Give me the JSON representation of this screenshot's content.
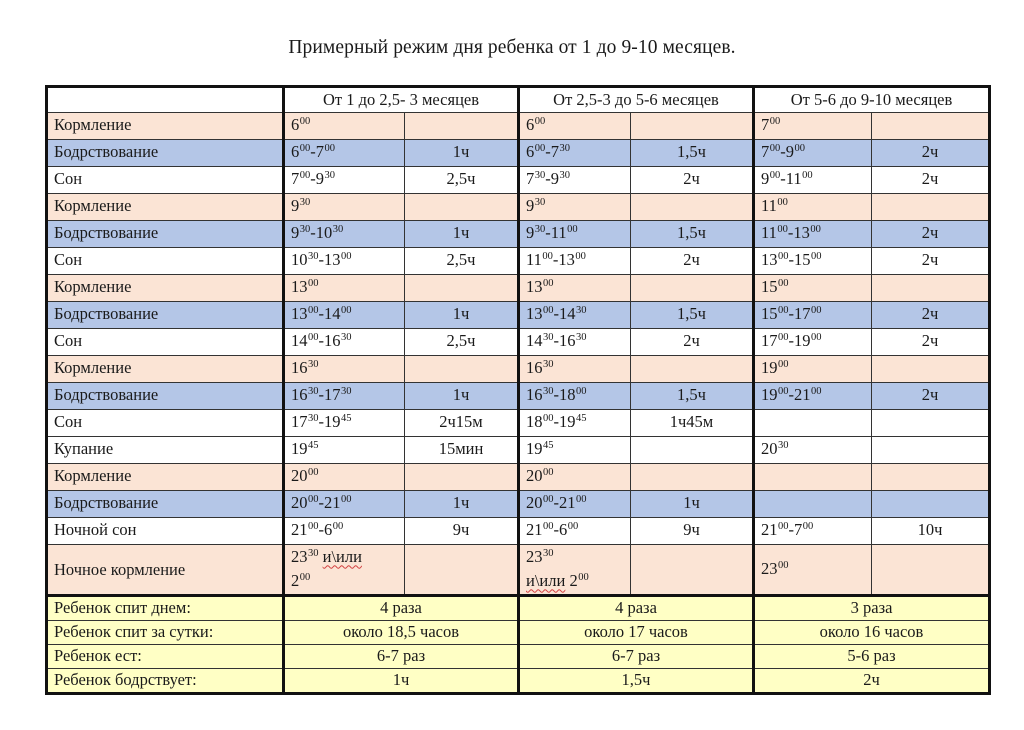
{
  "title": "Примерный режим дня ребенка от 1 до 9-10 месяцев.",
  "colors": {
    "feeding_row": "#FBE4D5",
    "wake_row": "#B4C6E7",
    "sleep_row": "#FFFFFF",
    "summary_row": "#FFFFC5",
    "border": "#111111",
    "spellcheck_underline": "#D24040"
  },
  "header": {
    "corner": "",
    "groups": [
      "От 1 до 2,5- 3 месяцев",
      "От 2,5-3 до 5-6 месяцев",
      "От 5-6 до 9-10 месяцев"
    ]
  },
  "rows": [
    {
      "type": "feed",
      "label": "Кормление",
      "cells": [
        {
          "t": [
            [
              "6",
              "00"
            ]
          ],
          "d": ""
        },
        {
          "t": [
            [
              "6",
              "00"
            ]
          ],
          "d": ""
        },
        {
          "t": [
            [
              "7",
              "00"
            ]
          ],
          "d": ""
        }
      ]
    },
    {
      "type": "wake",
      "label": "Бодрствование",
      "cells": [
        {
          "t": [
            [
              "6",
              "00"
            ],
            [
              "7",
              "00"
            ]
          ],
          "d": "1ч"
        },
        {
          "t": [
            [
              "6",
              "00"
            ],
            [
              "7",
              "30"
            ]
          ],
          "d": "1,5ч"
        },
        {
          "t": [
            [
              "7",
              "00"
            ],
            [
              "9",
              "00"
            ]
          ],
          "d": "2ч"
        }
      ]
    },
    {
      "type": "sleep",
      "label": "Сон",
      "cells": [
        {
          "t": [
            [
              "7",
              "00"
            ],
            [
              "9",
              "30"
            ]
          ],
          "d": "2,5ч"
        },
        {
          "t": [
            [
              "7",
              "30"
            ],
            [
              "9",
              "30"
            ]
          ],
          "d": "2ч"
        },
        {
          "t": [
            [
              "9",
              "00"
            ],
            [
              "11",
              "00"
            ]
          ],
          "d": "2ч"
        }
      ]
    },
    {
      "type": "feed",
      "label": "Кормление",
      "cells": [
        {
          "t": [
            [
              "9",
              "30"
            ]
          ],
          "d": ""
        },
        {
          "t": [
            [
              "9",
              "30"
            ]
          ],
          "d": ""
        },
        {
          "t": [
            [
              "11",
              "00"
            ]
          ],
          "d": ""
        }
      ]
    },
    {
      "type": "wake",
      "label": "Бодрствование",
      "cells": [
        {
          "t": [
            [
              "9",
              "30"
            ],
            [
              "10",
              "30"
            ]
          ],
          "d": "1ч"
        },
        {
          "t": [
            [
              "9",
              "30"
            ],
            [
              "11",
              "00"
            ]
          ],
          "d": "1,5ч"
        },
        {
          "t": [
            [
              "11",
              "00"
            ],
            [
              "13",
              "00"
            ]
          ],
          "d": "2ч"
        }
      ]
    },
    {
      "type": "sleep",
      "label": "Сон",
      "cells": [
        {
          "t": [
            [
              "10",
              "30"
            ],
            [
              "13",
              "00"
            ]
          ],
          "d": "2,5ч"
        },
        {
          "t": [
            [
              "11",
              "00"
            ],
            [
              "13",
              "00"
            ]
          ],
          "d": "2ч"
        },
        {
          "t": [
            [
              "13",
              "00"
            ],
            [
              "15",
              "00"
            ]
          ],
          "d": "2ч"
        }
      ]
    },
    {
      "type": "feed",
      "label": "Кормление",
      "cells": [
        {
          "t": [
            [
              "13",
              "00"
            ]
          ],
          "d": ""
        },
        {
          "t": [
            [
              "13",
              "00"
            ]
          ],
          "d": ""
        },
        {
          "t": [
            [
              "15",
              "00"
            ]
          ],
          "d": ""
        }
      ]
    },
    {
      "type": "wake",
      "label": "Бодрствование",
      "cells": [
        {
          "t": [
            [
              "13",
              "00"
            ],
            [
              "14",
              "00"
            ]
          ],
          "d": "1ч"
        },
        {
          "t": [
            [
              "13",
              "00"
            ],
            [
              "14",
              "30"
            ]
          ],
          "d": "1,5ч"
        },
        {
          "t": [
            [
              "15",
              "00"
            ],
            [
              "17",
              "00"
            ]
          ],
          "d": "2ч"
        }
      ]
    },
    {
      "type": "sleep",
      "label": "Сон",
      "cells": [
        {
          "t": [
            [
              "14",
              "00"
            ],
            [
              "16",
              "30"
            ]
          ],
          "d": "2,5ч"
        },
        {
          "t": [
            [
              "14",
              "30"
            ],
            [
              "16",
              "30"
            ]
          ],
          "d": "2ч"
        },
        {
          "t": [
            [
              "17",
              "00"
            ],
            [
              "19",
              "00"
            ]
          ],
          "d": "2ч"
        }
      ]
    },
    {
      "type": "feed",
      "label": "Кормление",
      "cells": [
        {
          "t": [
            [
              "16",
              "30"
            ]
          ],
          "d": ""
        },
        {
          "t": [
            [
              "16",
              "30"
            ]
          ],
          "d": ""
        },
        {
          "t": [
            [
              "19",
              "00"
            ]
          ],
          "d": ""
        }
      ]
    },
    {
      "type": "wake",
      "label": "Бодрствование",
      "cells": [
        {
          "t": [
            [
              "16",
              "30"
            ],
            [
              "17",
              "30"
            ]
          ],
          "d": "1ч"
        },
        {
          "t": [
            [
              "16",
              "30"
            ],
            [
              "18",
              "00"
            ]
          ],
          "d": "1,5ч"
        },
        {
          "t": [
            [
              "19",
              "00"
            ],
            [
              "21",
              "00"
            ]
          ],
          "d": "2ч"
        }
      ]
    },
    {
      "type": "sleep",
      "label": "Сон",
      "cells": [
        {
          "t": [
            [
              "17",
              "30"
            ],
            [
              "19",
              "45"
            ]
          ],
          "d": "2ч15м"
        },
        {
          "t": [
            [
              "18",
              "00"
            ],
            [
              "19",
              "45"
            ]
          ],
          "d": "1ч45м"
        },
        {
          "t": [],
          "d": ""
        }
      ]
    },
    {
      "type": "bath",
      "label": "Купание",
      "cells": [
        {
          "t": [
            [
              "19",
              "45"
            ]
          ],
          "d": "15мин"
        },
        {
          "t": [
            [
              "19",
              "45"
            ]
          ],
          "d": ""
        },
        {
          "t": [
            [
              "20",
              "30"
            ]
          ],
          "d": ""
        }
      ]
    },
    {
      "type": "feed",
      "label": "Кормление",
      "cells": [
        {
          "t": [
            [
              "20",
              "00"
            ]
          ],
          "d": ""
        },
        {
          "t": [
            [
              "20",
              "00"
            ]
          ],
          "d": ""
        },
        {
          "t": [],
          "d": ""
        }
      ]
    },
    {
      "type": "wake",
      "label": "Бодрствование",
      "cells": [
        {
          "t": [
            [
              "20",
              "00"
            ],
            [
              "21",
              "00"
            ]
          ],
          "d": "1ч"
        },
        {
          "t": [
            [
              "20",
              "00"
            ],
            [
              "21",
              "00"
            ]
          ],
          "d": "1ч"
        },
        {
          "t": [],
          "d": ""
        }
      ]
    },
    {
      "type": "night",
      "label": "Ночной сон",
      "cells": [
        {
          "t": [
            [
              "21",
              "00"
            ],
            [
              "6",
              "00"
            ]
          ],
          "d": "9ч"
        },
        {
          "t": [
            [
              "21",
              "00"
            ],
            [
              "6",
              "00"
            ]
          ],
          "d": "9ч"
        },
        {
          "t": [
            [
              "21",
              "00"
            ],
            [
              "7",
              "00"
            ]
          ],
          "d": "10ч"
        }
      ]
    }
  ],
  "night_feeding": {
    "label": "Ночное кормление",
    "connector": "и\\или",
    "cells": [
      {
        "first": [
          "23",
          "30"
        ],
        "second": [
          "2",
          "00"
        ],
        "layout": "connector-after-first",
        "d": ""
      },
      {
        "first": [
          "23",
          "30"
        ],
        "second": [
          "2",
          "00"
        ],
        "layout": "connector-before-second",
        "d": ""
      },
      {
        "first": [
          "23",
          "00"
        ],
        "second": null,
        "layout": "single",
        "d": ""
      }
    ]
  },
  "summary": [
    {
      "label": "Ребенок спит днем:",
      "values": [
        "4 раза",
        "4 раза",
        "3 раза"
      ]
    },
    {
      "label": "Ребенок спит за сутки:",
      "values": [
        "около 18,5 часов",
        "около 17 часов",
        "около 16 часов"
      ]
    },
    {
      "label": "Ребенок ест:",
      "values": [
        "6-7 раз",
        "6-7 раз",
        "5-6 раз"
      ]
    },
    {
      "label": "Ребенок бодрствует:",
      "values": [
        "1ч",
        "1,5ч",
        "2ч"
      ]
    }
  ]
}
